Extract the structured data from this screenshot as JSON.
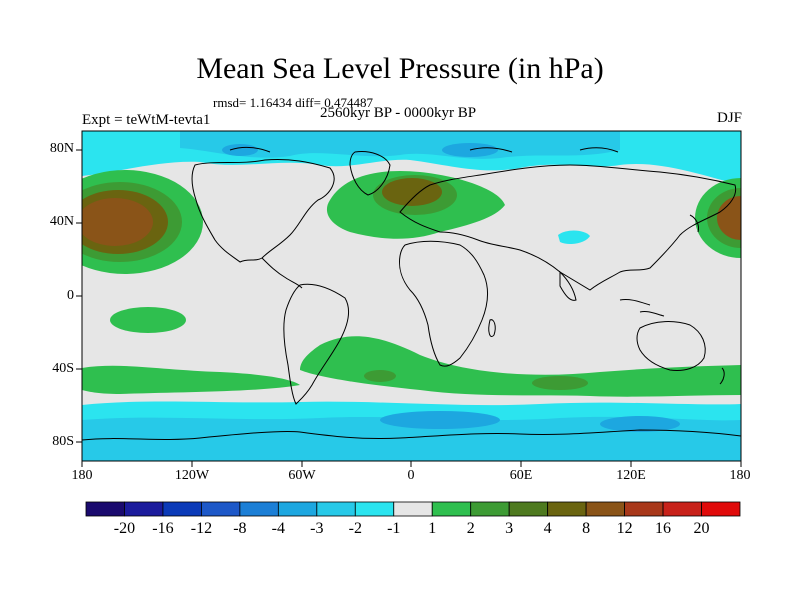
{
  "title": "Mean Sea Level Pressure (in hPa)",
  "stats": "rmsd= 1.16434 diff= 0.474487",
  "period": "2560kyr BP - 0000kyr BP",
  "experiment": "Expt = teWtM-tevta1",
  "season": "DJF",
  "lat_labels": [
    "80N",
    "40N",
    "0",
    "40S",
    "80S"
  ],
  "lon_labels": [
    "180",
    "120W",
    "60W",
    "0",
    "60E",
    "120E",
    "180"
  ],
  "colorbar": {
    "labels": [
      "-20",
      "-16",
      "-12",
      "-8",
      "-4",
      "-3",
      "-2",
      "-1",
      "1",
      "2",
      "3",
      "4",
      "8",
      "12",
      "16",
      "20"
    ],
    "colors": [
      "#1a0a6e",
      "#1b1b9c",
      "#0b3ab8",
      "#1d58c8",
      "#1c7fd6",
      "#1da7e0",
      "#27c9e8",
      "#2be4ef",
      "#e6e6e6",
      "#2fbf4f",
      "#3d9b34",
      "#4e7a1f",
      "#6a6410",
      "#8a5418",
      "#a8381a",
      "#c8221a",
      "#e00a0a"
    ]
  },
  "map_colors": {
    "land_outline": "#000000",
    "neutral": "#e6e6e6"
  }
}
